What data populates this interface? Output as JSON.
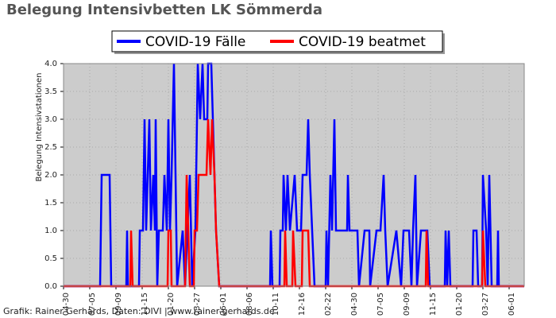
{
  "chart_data": {
    "type": "line",
    "title": "Belegung Intensivbetten LK Sömmerda",
    "y_label": "Belegung Intensivstationen",
    "credit": "Grafik: Rainer Gerhards, Daten: DIVI | www.rainer-gerhards.de",
    "xlim": [
      0,
      1160
    ],
    "xticks": [
      {
        "value": 0,
        "label": "04-30"
      },
      {
        "value": 66,
        "label": "07-05"
      },
      {
        "value": 132,
        "label": "09-09"
      },
      {
        "value": 198,
        "label": "11-15"
      },
      {
        "value": 264,
        "label": "01-20"
      },
      {
        "value": 330,
        "label": "03-27"
      },
      {
        "value": 396,
        "label": "06-01"
      },
      {
        "value": 462,
        "label": "08-06"
      },
      {
        "value": 528,
        "label": "10-11"
      },
      {
        "value": 594,
        "label": "12-16"
      },
      {
        "value": 660,
        "label": "02-22"
      },
      {
        "value": 726,
        "label": "04-30"
      },
      {
        "value": 792,
        "label": "07-05"
      },
      {
        "value": 858,
        "label": "09-09"
      },
      {
        "value": 924,
        "label": "11-15"
      },
      {
        "value": 990,
        "label": "01-20"
      },
      {
        "value": 1056,
        "label": "03-27"
      },
      {
        "value": 1122,
        "label": "06-01"
      }
    ],
    "ylim": [
      0,
      4
    ],
    "yticks": [
      {
        "value": 0,
        "label": "0.0"
      },
      {
        "value": 0.5,
        "label": "0.5"
      },
      {
        "value": 1,
        "label": "1.0"
      },
      {
        "value": 1.5,
        "label": "1.5"
      },
      {
        "value": 2,
        "label": "2.0"
      },
      {
        "value": 2.5,
        "label": "2.5"
      },
      {
        "value": 3,
        "label": "3.0"
      },
      {
        "value": 3.5,
        "label": "3.5"
      },
      {
        "value": 4,
        "label": "4.0"
      }
    ],
    "grid": true,
    "legend": "top",
    "series": [
      {
        "name": "COVID-19 Fälle",
        "color": "#0000ff",
        "x": [
          0,
          92,
          96,
          116,
          120,
          158,
          160,
          162,
          190,
          192,
          200,
          204,
          208,
          216,
          220,
          226,
          230,
          232,
          236,
          240,
          250,
          254,
          260,
          264,
          268,
          272,
          278,
          282,
          286,
          300,
          306,
          318,
          324,
          332,
          338,
          344,
          350,
          354,
          362,
          364,
          372,
          380,
          384,
          392,
          520,
          522,
          526,
          544,
          546,
          552,
          554,
          560,
          564,
          570,
          582,
          588,
          598,
          602,
          612,
          616,
          620,
          626,
          632,
          660,
          662,
          666,
          672,
          676,
          682,
          686,
          694,
          700,
          714,
          716,
          720,
          740,
          744,
          758,
          770,
          772,
          788,
          798,
          806,
          810,
          816,
          838,
          850,
          856,
          870,
          876,
          880,
          886,
          890,
          900,
          916,
          922,
          960,
          962,
          966,
          970,
          974,
          1030,
          1032,
          1040,
          1044,
          1054,
          1056,
          1064,
          1068,
          1072,
          1078,
          1092,
          1094,
          1096,
          1160
        ],
        "values": [
          0,
          0,
          2,
          2,
          0,
          0,
          1,
          0,
          0,
          1,
          1,
          3,
          1,
          3,
          1,
          2,
          1,
          3,
          0,
          1,
          1,
          2,
          1,
          3,
          1,
          2,
          4,
          2,
          0,
          1,
          0,
          2,
          0,
          1,
          4,
          3,
          4,
          3,
          3,
          4,
          4,
          2,
          1,
          0,
          0,
          1,
          0,
          0,
          1,
          1,
          2,
          1,
          2,
          1,
          2,
          1,
          1,
          2,
          2,
          3,
          2,
          1,
          0,
          0,
          1,
          0,
          2,
          1,
          3,
          1,
          1,
          1,
          1,
          2,
          1,
          1,
          0,
          1,
          1,
          0,
          1,
          1,
          2,
          1,
          0,
          1,
          0,
          1,
          1,
          0,
          1,
          2,
          0,
          1,
          1,
          0,
          0,
          1,
          0,
          1,
          0,
          0,
          1,
          1,
          0,
          0,
          2,
          1,
          0,
          2,
          0,
          0,
          1,
          0,
          0
        ]
      },
      {
        "name": "COVID-19 beatmet",
        "color": "#ff0000",
        "x": [
          0,
          168,
          170,
          174,
          262,
          264,
          270,
          272,
          306,
          310,
          314,
          318,
          328,
          330,
          336,
          340,
          352,
          360,
          364,
          370,
          374,
          380,
          384,
          392,
          556,
          558,
          562,
          576,
          578,
          584,
          600,
          602,
          616,
          620,
          912,
          914,
          918,
          1054,
          1056,
          1062,
          1160
        ],
        "values": [
          0,
          0,
          1,
          0,
          0,
          1,
          1,
          0,
          0,
          2,
          1,
          0,
          0,
          1,
          1,
          2,
          2,
          2,
          3,
          2,
          3,
          2,
          1,
          0,
          0,
          1,
          0,
          0,
          1,
          0,
          0,
          1,
          1,
          0,
          0,
          1,
          0,
          0,
          1,
          0,
          0
        ]
      }
    ]
  }
}
